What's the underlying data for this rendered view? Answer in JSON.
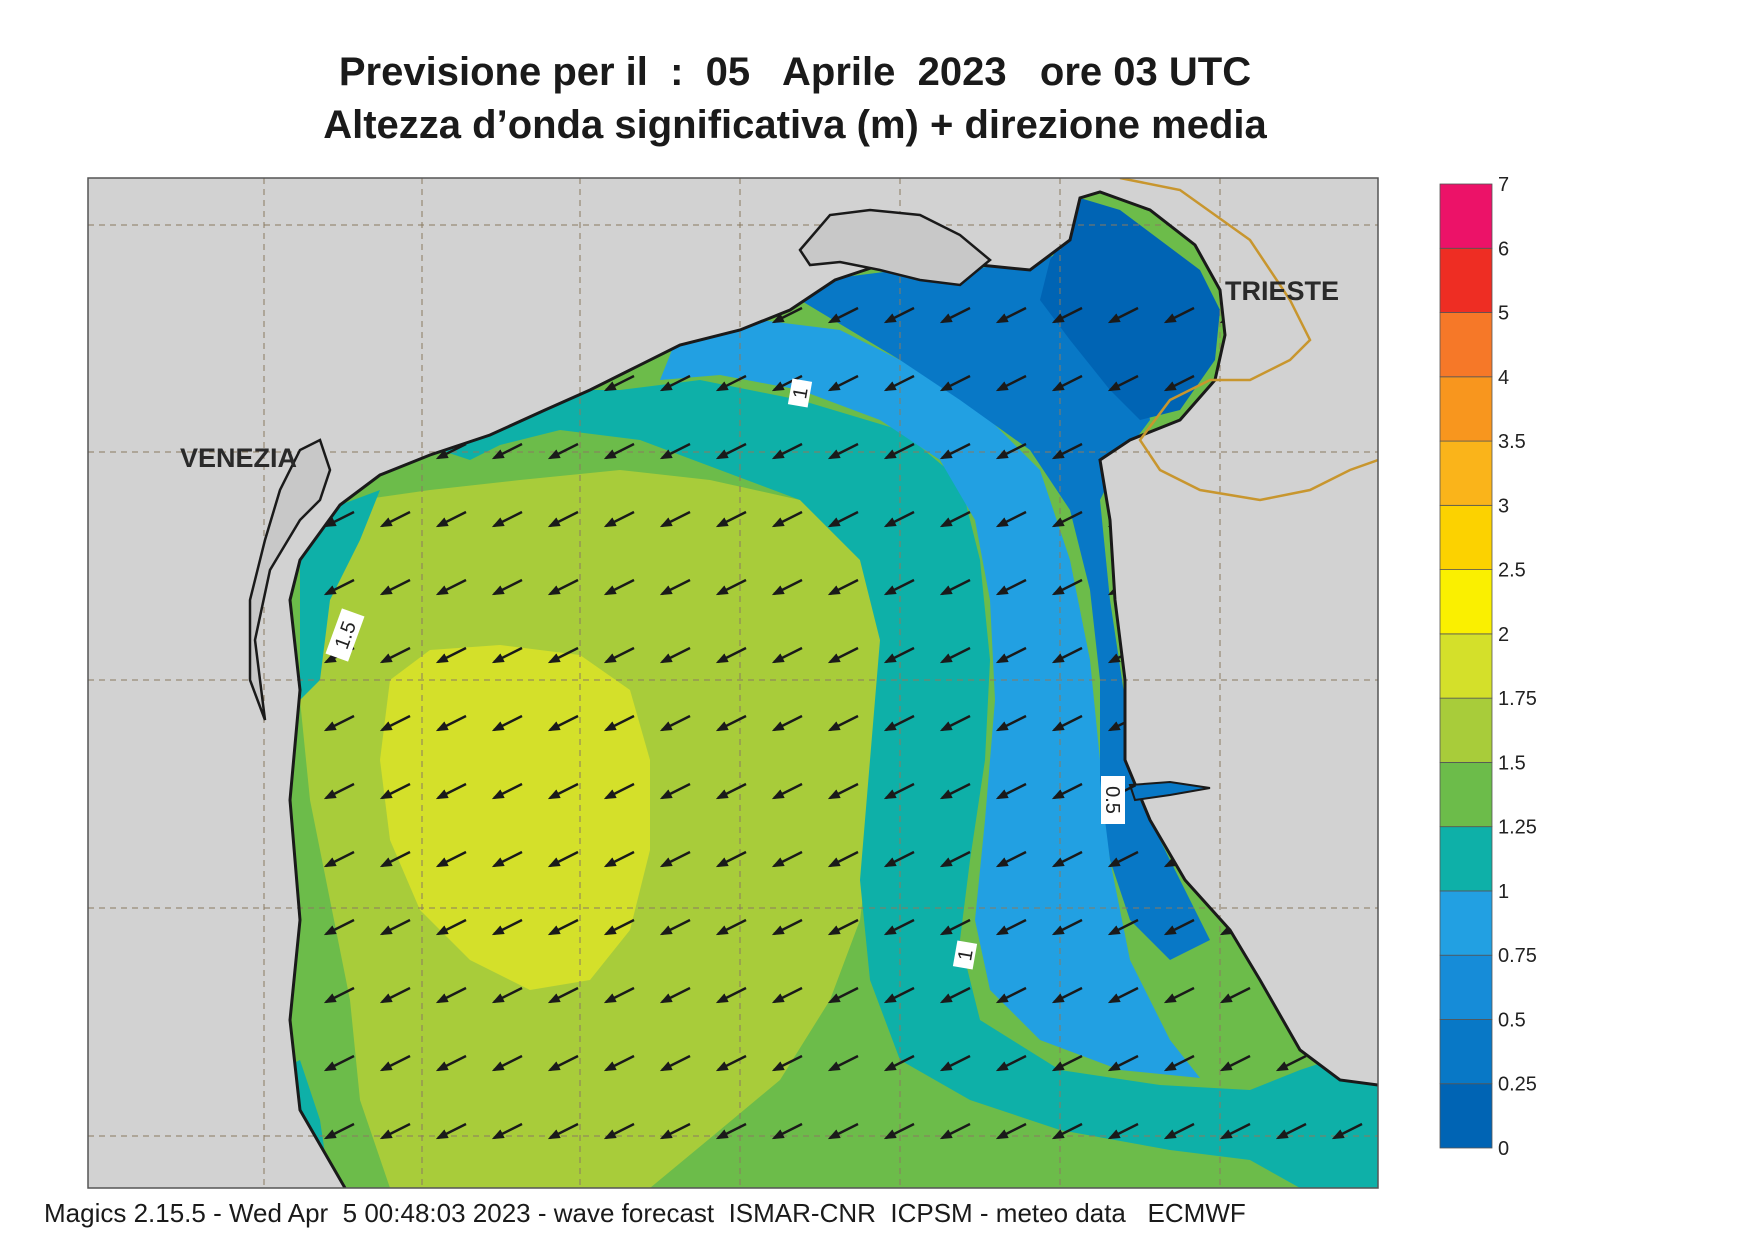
{
  "header": {
    "title_line1": "Previsione per il  :  05   Aprile  2023   ore 03 UTC",
    "title_line2": "Altezza d’onda significativa (m) + direzione media"
  },
  "map": {
    "place_labels": [
      "VENEZIA",
      "TRIESTE"
    ],
    "contour_labels": [
      "1",
      "1.5",
      "0.5",
      "1"
    ],
    "land_color": "#d2d2d2",
    "coast_color": "#1a1a1a",
    "border_color": "#c8962e",
    "arrow_direction": "south-west"
  },
  "legend": {
    "levels": [
      "0",
      "0.25",
      "0.5",
      "0.75",
      "1",
      "1.25",
      "1.5",
      "1.75",
      "2",
      "2.5",
      "3",
      "3.5",
      "4",
      "5",
      "6",
      "7"
    ],
    "colors": [
      "#0064b4",
      "#0878c6",
      "#168cd8",
      "#22a0e2",
      "#0eb0a8",
      "#6cbc4a",
      "#a8cc3a",
      "#d4e02a",
      "#faf000",
      "#fcd200",
      "#fab41a",
      "#f8961e",
      "#f67828",
      "#ee2d23",
      "#ec1268"
    ]
  },
  "footer": {
    "text": "Magics 2.15.5 - Wed Apr  5 00:48:03 2023 - wave forecast  ISMAR-CNR  ICPSM - meteo data   ECMWF"
  }
}
